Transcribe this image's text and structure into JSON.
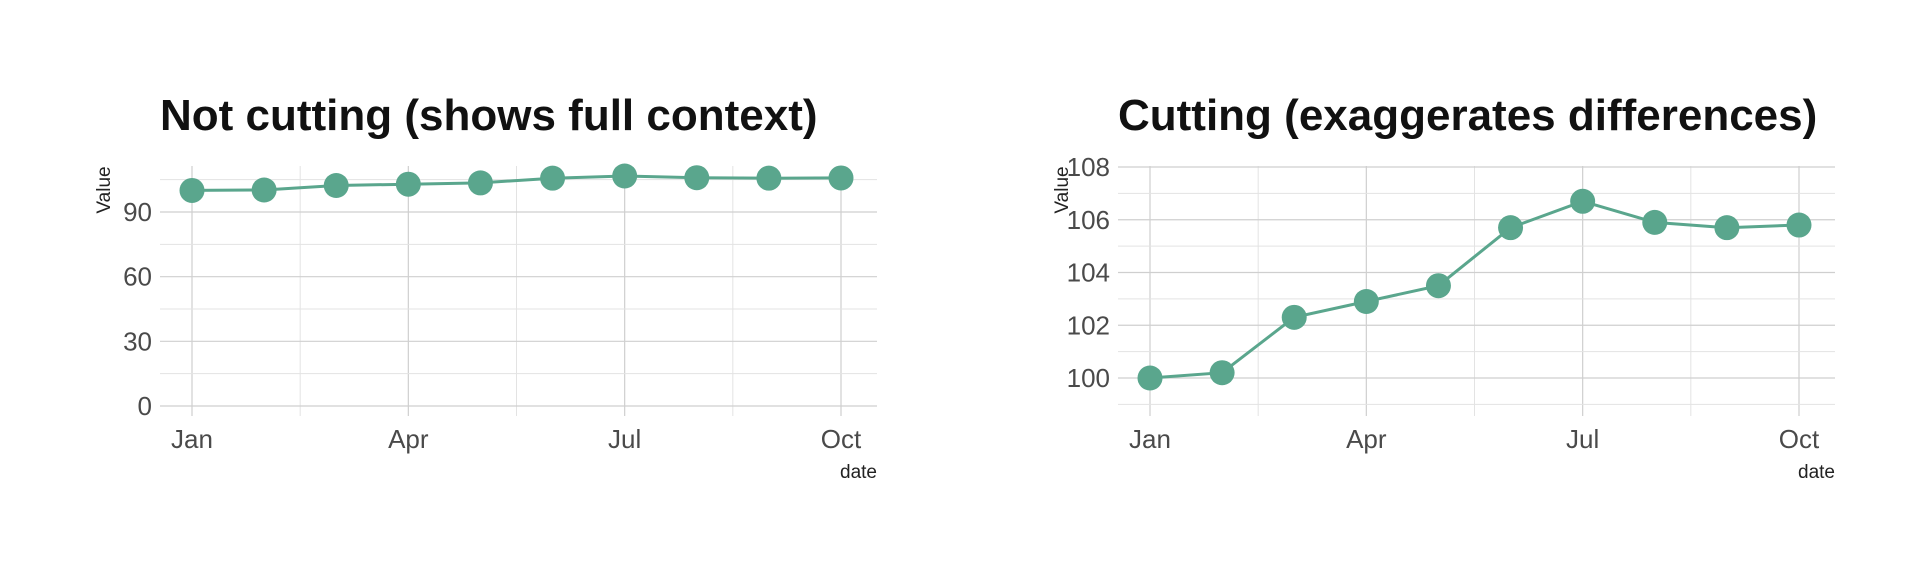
{
  "chart_data": [
    {
      "type": "line",
      "title": "Not cutting (shows full context)",
      "xlabel": "date",
      "ylabel": "Value",
      "x": [
        "Jan",
        "Feb",
        "Mar",
        "Apr",
        "May",
        "Jun",
        "Jul",
        "Aug",
        "Sep",
        "Oct"
      ],
      "values": [
        100.0,
        100.2,
        102.3,
        102.9,
        103.5,
        105.7,
        106.7,
        105.9,
        105.7,
        105.8
      ],
      "xticks": [
        "Jan",
        "Apr",
        "Jul",
        "Oct"
      ],
      "yticks": [
        "0",
        "30",
        "60",
        "90"
      ],
      "ylim": [
        0,
        110
      ],
      "grid": true,
      "color": "#5aa68d"
    },
    {
      "type": "line",
      "title": "Cutting (exaggerates differences)",
      "xlabel": "date",
      "ylabel": "Value",
      "x": [
        "Jan",
        "Feb",
        "Mar",
        "Apr",
        "May",
        "Jun",
        "Jul",
        "Aug",
        "Sep",
        "Oct"
      ],
      "values": [
        100.0,
        100.2,
        102.3,
        102.9,
        103.5,
        105.7,
        106.7,
        105.9,
        105.7,
        105.8
      ],
      "xticks": [
        "Jan",
        "Apr",
        "Jul",
        "Oct"
      ],
      "yticks": [
        "100",
        "102",
        "104",
        "106",
        "108"
      ],
      "ylim": [
        99.0,
        108.0
      ],
      "grid": true,
      "color": "#5aa68d"
    }
  ]
}
